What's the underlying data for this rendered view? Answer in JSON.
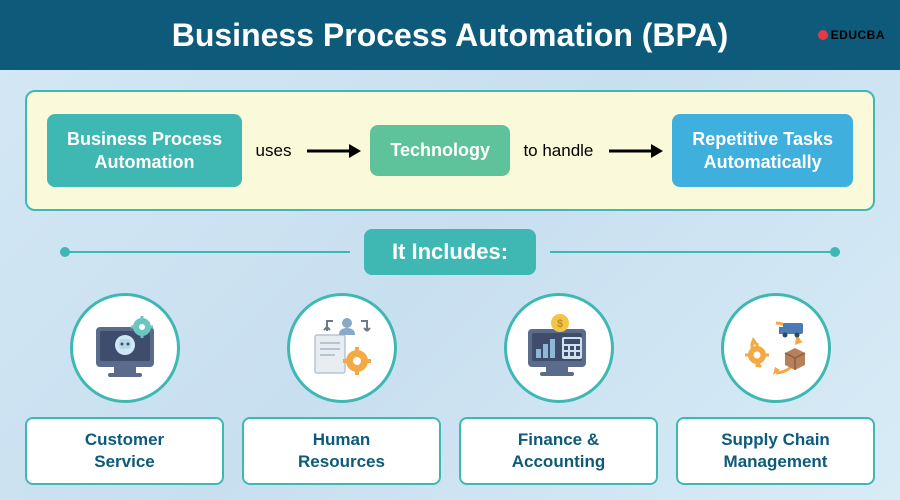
{
  "header": {
    "title": "Business Process Automation (BPA)",
    "bg_color": "#0d5a7a",
    "logo_text": "EDUCBA",
    "logo_dot_color": "#e63946"
  },
  "flow": {
    "box_bg": "#faf9d9",
    "box_border": "#3fb8b3",
    "nodes": [
      {
        "label": "Business Process\nAutomation",
        "color": "#3fb8b3"
      },
      {
        "label": "Technology",
        "color": "#5ec29a"
      },
      {
        "label": "Repetitive Tasks\nAutomatically",
        "color": "#3fb0dd"
      }
    ],
    "edges": [
      {
        "label": "uses"
      },
      {
        "label": "to handle"
      }
    ],
    "arrow_color": "#000000"
  },
  "section": {
    "label": "It Includes:",
    "pill_color": "#3fb8b3",
    "line_color": "#3fb8b3"
  },
  "categories": [
    {
      "label": "Customer\nService",
      "ring_color": "#3fb8b3",
      "label_border": "#3fb8b3",
      "label_text_color": "#0d5a7a",
      "icon": "customer"
    },
    {
      "label": "Human\nResources",
      "ring_color": "#3fb8b3",
      "label_border": "#3fb8b3",
      "label_text_color": "#0d5a7a",
      "icon": "hr"
    },
    {
      "label": "Finance &\nAccounting",
      "ring_color": "#3fb8b3",
      "label_border": "#3fb8b3",
      "label_text_color": "#0d5a7a",
      "icon": "finance"
    },
    {
      "label": "Supply Chain\nManagement",
      "ring_color": "#3fb8b3",
      "label_border": "#3fb8b3",
      "label_text_color": "#0d5a7a",
      "icon": "supply"
    }
  ],
  "icon_palette": {
    "monitor": "#5a6b8c",
    "screen": "#3e4d6b",
    "gear": "#f4a944",
    "gear2": "#6bc6c0",
    "robot": "#cfe8f5",
    "doc": "#e8edf2",
    "person": "#89a9c7",
    "truck": "#4a7bb5",
    "box": "#b5805a",
    "coin": "#f4c444",
    "arrow": "#f4a944"
  }
}
